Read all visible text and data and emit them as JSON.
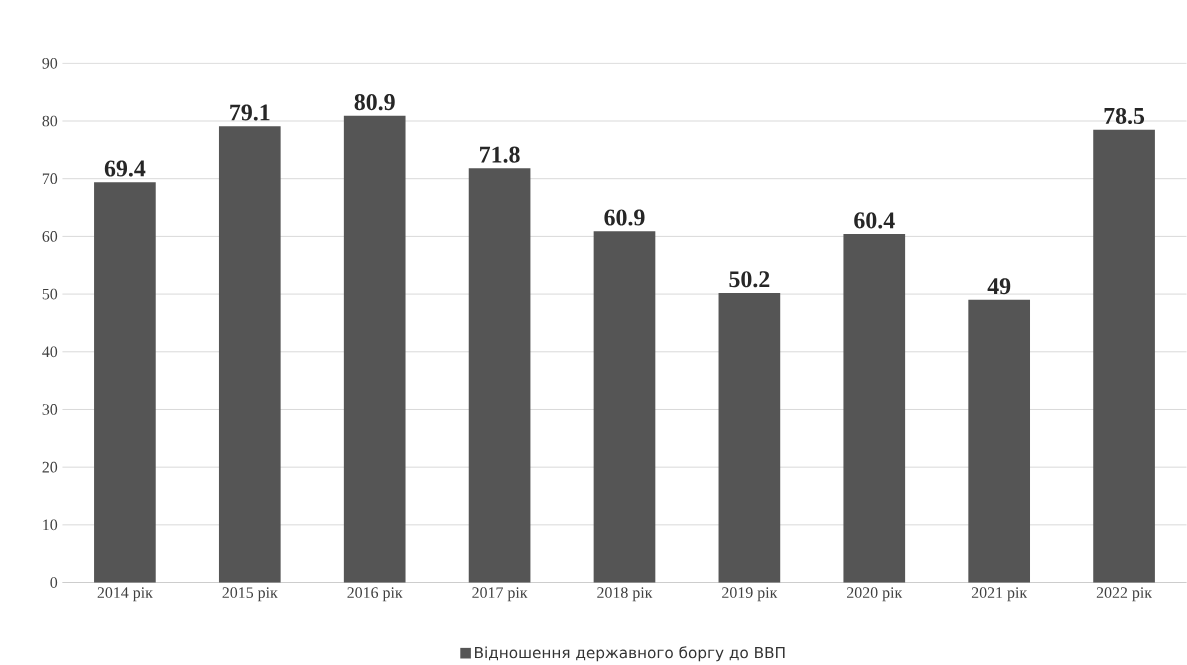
{
  "chart_data": {
    "type": "bar",
    "categories": [
      "2014 рік",
      "2015 рік",
      "2016 рік",
      "2017 рік",
      "2018 рік",
      "2019 рік",
      "2020 рік",
      "2021 рік",
      "2022 рік"
    ],
    "series": [
      {
        "name": "Відношення державного боргу до ВВП",
        "color": "#555555",
        "values": [
          69.4,
          79.1,
          80.9,
          71.8,
          60.9,
          50.2,
          60.4,
          49,
          78.5
        ]
      }
    ],
    "ylim": [
      0,
      90
    ],
    "yticks": [
      0,
      10,
      20,
      30,
      40,
      50,
      60,
      70,
      80,
      90
    ],
    "grid": "y",
    "legend": "bottom",
    "data_labels": true
  }
}
